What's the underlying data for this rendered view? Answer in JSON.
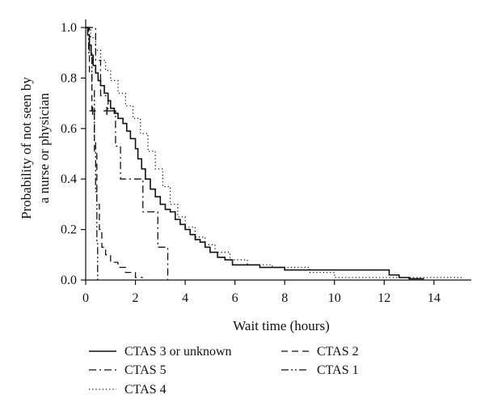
{
  "chart_data": {
    "type": "line",
    "step": true,
    "xlabel": "Wait time (hours)",
    "ylabel": [
      "Probability of not seen by",
      "a nurse or physician"
    ],
    "xlim": [
      0,
      15.5
    ],
    "ylim": [
      0,
      1.0
    ],
    "xticks": [
      0,
      2,
      4,
      6,
      8,
      10,
      12,
      14
    ],
    "yticks": [
      0.0,
      0.2,
      0.4,
      0.6,
      0.8,
      1.0
    ],
    "xtick_labels": [
      "0",
      "2",
      "4",
      "6",
      "8",
      "10",
      "12",
      "14"
    ],
    "ytick_labels": [
      "0.0",
      "0.2",
      "0.4",
      "0.6",
      "0.8",
      "1.0"
    ],
    "grid": false,
    "legend_position": "bottom",
    "series": [
      {
        "name": "CTAS 3 or unknown",
        "style": "solid",
        "x": [
          0,
          0.08,
          0.15,
          0.22,
          0.3,
          0.4,
          0.5,
          0.6,
          0.75,
          0.9,
          1.0,
          1.15,
          1.3,
          1.5,
          1.65,
          1.8,
          2.0,
          2.1,
          2.25,
          2.4,
          2.6,
          2.8,
          3.0,
          3.2,
          3.4,
          3.6,
          3.8,
          4.0,
          4.2,
          4.4,
          4.6,
          4.8,
          5.0,
          5.3,
          5.6,
          5.9,
          7.0,
          8.0,
          12.2,
          12.6,
          13.0,
          13.6
        ],
        "y": [
          1.0,
          0.97,
          0.93,
          0.89,
          0.85,
          0.82,
          0.79,
          0.77,
          0.74,
          0.71,
          0.68,
          0.66,
          0.64,
          0.62,
          0.59,
          0.56,
          0.52,
          0.48,
          0.44,
          0.4,
          0.36,
          0.33,
          0.3,
          0.28,
          0.27,
          0.24,
          0.22,
          0.2,
          0.18,
          0.16,
          0.15,
          0.13,
          0.11,
          0.09,
          0.08,
          0.06,
          0.05,
          0.04,
          0.02,
          0.01,
          0.005,
          0.005
        ]
      },
      {
        "name": "CTAS 2",
        "style": "dashed",
        "x": [
          0,
          0.15,
          0.25,
          0.35,
          0.45,
          0.55,
          0.65,
          0.8,
          1.0,
          1.3,
          1.6,
          2.0,
          2.3
        ],
        "y": [
          1.0,
          0.82,
          0.67,
          0.5,
          0.3,
          0.2,
          0.13,
          0.1,
          0.07,
          0.05,
          0.03,
          0.01,
          0.01
        ]
      },
      {
        "name": "CTAS 5",
        "style": "dashdot",
        "x": [
          0,
          0.4,
          0.6,
          0.9,
          1.2,
          1.4,
          2.3,
          2.9,
          3.05,
          3.3
        ],
        "y": [
          1.0,
          0.87,
          0.73,
          0.67,
          0.53,
          0.4,
          0.27,
          0.13,
          0.13,
          0.0
        ]
      },
      {
        "name": "CTAS 4",
        "style": "dotted",
        "x": [
          0,
          0.2,
          0.4,
          0.6,
          0.8,
          1.0,
          1.3,
          1.6,
          1.9,
          2.2,
          2.5,
          2.8,
          3.1,
          3.4,
          3.7,
          4.0,
          4.4,
          4.8,
          5.2,
          5.8,
          6.5,
          7.5,
          9.0,
          10.0,
          12.5,
          13.5,
          15.2
        ],
        "y": [
          1.0,
          0.96,
          0.91,
          0.87,
          0.83,
          0.79,
          0.74,
          0.69,
          0.64,
          0.58,
          0.51,
          0.44,
          0.37,
          0.3,
          0.25,
          0.21,
          0.17,
          0.14,
          0.11,
          0.08,
          0.06,
          0.05,
          0.03,
          0.01,
          0.01,
          0.01,
          0.01
        ]
      },
      {
        "name": "CTAS 1",
        "style": "dashdotdot",
        "x": [
          0,
          0.12,
          0.25,
          0.35,
          0.4,
          0.45,
          0.48
        ],
        "y": [
          1.0,
          0.9,
          0.75,
          0.55,
          0.35,
          0.15,
          0.0
        ]
      }
    ],
    "censor_marks": [
      {
        "series": "CTAS 2",
        "x": 0.28,
        "y": 0.67
      },
      {
        "series": "CTAS 5",
        "x": 0.85,
        "y": 0.67
      }
    ]
  }
}
